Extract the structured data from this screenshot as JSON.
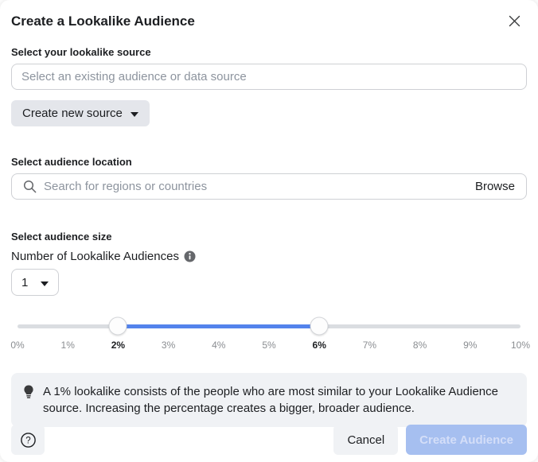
{
  "modal": {
    "title": "Create a Lookalike Audience"
  },
  "source_section": {
    "label": "Select your lookalike source",
    "input_placeholder": "Select an existing audience or data source",
    "create_new_source_label": "Create new source"
  },
  "location_section": {
    "label": "Select audience location",
    "search_placeholder": "Search for regions or countries",
    "browse_label": "Browse"
  },
  "size_section": {
    "label": "Select audience size",
    "count_label": "Number of Lookalike Audiences",
    "count_value": "1",
    "slider": {
      "min_percent": 0,
      "max_percent": 10,
      "range_start_percent": 2,
      "range_end_percent": 6,
      "ticks": [
        "0%",
        "1%",
        "2%",
        "3%",
        "4%",
        "5%",
        "6%",
        "7%",
        "8%",
        "9%",
        "10%"
      ],
      "active_ticks": [
        "2%",
        "6%"
      ]
    }
  },
  "tip": {
    "text": "A 1% lookalike consists of the people who are most similar to your Lookalike Audience source. Increasing the percentage creates a bigger, broader audience."
  },
  "footer": {
    "cancel_label": "Cancel",
    "create_label": "Create Audience"
  },
  "colors": {
    "accent_blue": "#5383ec",
    "track_gray": "#dadde1",
    "disabled_button_bg": "#a6bff0",
    "disabled_button_text": "#d4def8"
  }
}
